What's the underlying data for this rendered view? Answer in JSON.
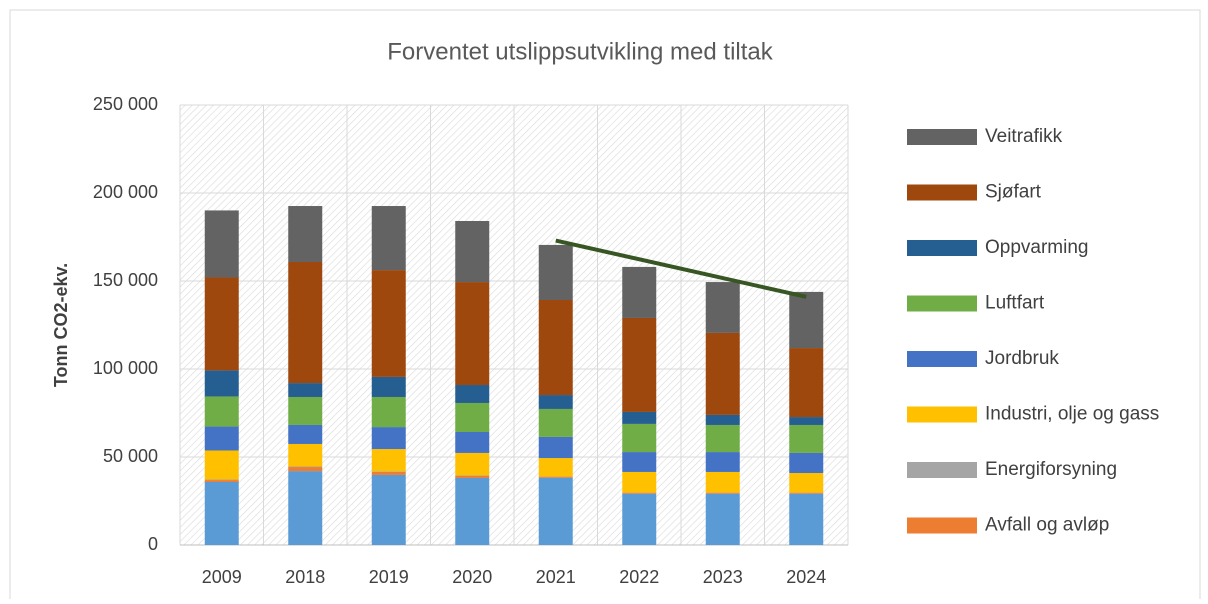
{
  "chart_data": {
    "type": "stacked_bar",
    "title": "Forventet utslippsutvikling med tiltak",
    "y_label": "Tonn CO2-ekv.",
    "categories": [
      "2009",
      "2018",
      "2019",
      "2020",
      "2021",
      "2022",
      "2023",
      "2024"
    ],
    "ylim": [
      0,
      250000
    ],
    "yticks": [
      0,
      {
        "value": 50000,
        "label": "50 000"
      },
      {
        "value": 100000,
        "label": "100 000"
      },
      {
        "value": 150000,
        "label": "150 000"
      },
      {
        "value": 200000,
        "label": "200 000"
      },
      {
        "value": 250000,
        "label": "250 000"
      }
    ],
    "grid": true,
    "series": [
      {
        "color": "#5b9bd5",
        "values": [
          35800,
          42000,
          39800,
          38100,
          38100,
          29000,
          29000,
          29000
        ]
      },
      {
        "name": "Avfall og avløp",
        "color": "#ed7d31",
        "values": [
          1100,
          2300,
          1700,
          1100,
          500,
          500,
          500,
          500
        ]
      },
      {
        "name": "Energiforsyning",
        "color": "#a5a5a5",
        "values": [
          300,
          300,
          300,
          300,
          300,
          300,
          300,
          300
        ]
      },
      {
        "name": "Industri, olje og gass",
        "color": "#ffc000",
        "values": [
          16500,
          12800,
          12700,
          12800,
          10500,
          11700,
          11700,
          11100
        ]
      },
      {
        "name": "Jordbruk",
        "color": "#4472c4",
        "values": [
          13600,
          10800,
          12500,
          11900,
          12000,
          11300,
          11300,
          11400
        ]
      },
      {
        "name": "Luftfart",
        "color": "#70ad47",
        "values": [
          17100,
          15900,
          17100,
          16500,
          15900,
          16000,
          15400,
          15900
        ]
      },
      {
        "name": "Oppvarming",
        "color": "#255e91",
        "values": [
          14800,
          7900,
          11400,
          10200,
          7900,
          6800,
          5700,
          4500
        ]
      },
      {
        "name": "Sjøfart",
        "color": "#9e480e",
        "values": [
          52800,
          68800,
          60700,
          58500,
          54000,
          53400,
          46600,
          39200
        ]
      },
      {
        "name": "Veitrafikk",
        "color": "#636363",
        "values": [
          38100,
          31800,
          36400,
          34700,
          31300,
          29000,
          28900,
          31900
        ]
      }
    ],
    "trend_line": {
      "x": [
        "2021",
        "2024"
      ],
      "values": [
        173000,
        141000
      ],
      "color": "#375623"
    }
  }
}
